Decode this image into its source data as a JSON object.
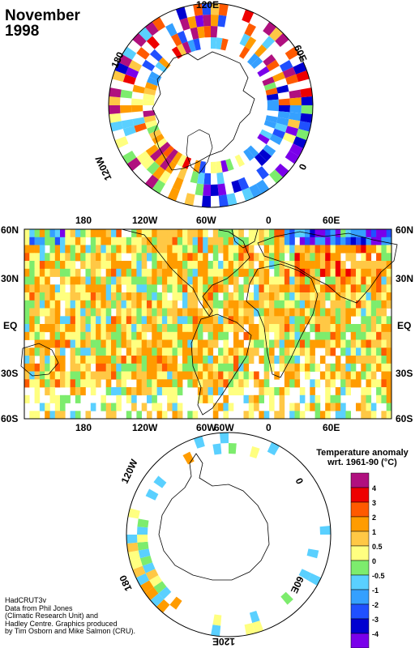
{
  "title_line1": "November",
  "title_line2": "1998",
  "north_polar": {
    "labels": [
      "120E",
      "180",
      "60E",
      "120W",
      "0"
    ]
  },
  "world_map": {
    "top_lon_labels": [
      "180",
      "120W",
      "60W",
      "0",
      "60E"
    ],
    "bottom_lon_labels": [
      "180",
      "120W",
      "60W",
      "0",
      "60E"
    ],
    "left_lat_labels": [
      "60N",
      "30N",
      "EQ",
      "30S",
      "60S"
    ],
    "right_lat_labels": [
      "60N",
      "30N",
      "EQ",
      "30S",
      "60S"
    ]
  },
  "south_polar": {
    "labels": [
      "60W",
      "120W",
      "0",
      "180",
      "60E",
      "120E"
    ]
  },
  "legend": {
    "title_line1": "Temperature anomaly",
    "title_line2": "wrt. 1961-90  (°C)",
    "levels": [
      "4",
      "3",
      "2",
      "1",
      "0.5",
      "0",
      "-0.5",
      "-1",
      "-2",
      "-3",
      "-4"
    ],
    "colors": [
      "#b0107f",
      "#ee0000",
      "#ff5a00",
      "#ff9c00",
      "#ffc845",
      "#ffff80",
      "#7dec6d",
      "#5ad0ff",
      "#35a0ff",
      "#2050ff",
      "#0000d0",
      "#7a00ea"
    ]
  },
  "credit_lines": [
    "HadCRUT3v",
    "Data from Phil Jones",
    "(Climatic Research Unit) and",
    "Hadley Centre.  Graphics produced",
    "by Tim Osborn and Mike Salmon (CRU)."
  ]
}
